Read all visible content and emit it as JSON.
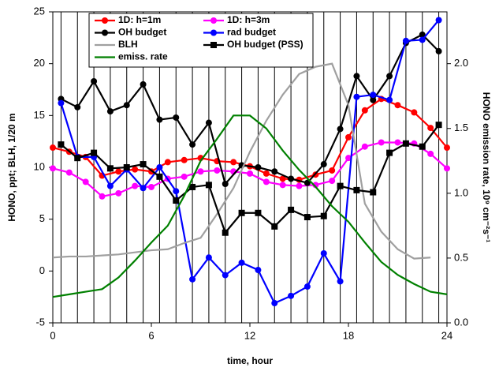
{
  "chart_data": {
    "type": "line",
    "x_label": "time, hour",
    "y_label": "HONO, ppt; BLH, 1/20 m",
    "y2_label": "HONO emission rate, 10⁹ cm⁻²s⁻¹",
    "xlim": [
      0,
      24
    ],
    "xticks": [
      0,
      6,
      12,
      18,
      24
    ],
    "ylim": [
      -5,
      25
    ],
    "yticks": [
      -5,
      0,
      5,
      10,
      15,
      20,
      25
    ],
    "y2lim": [
      0,
      2.4
    ],
    "y2ticks": [
      {
        "value": 0,
        "label": "0.0"
      },
      {
        "value": 0.5,
        "label": "0.5"
      },
      {
        "value": 1,
        "label": "1.0"
      },
      {
        "value": 1.5,
        "label": "1.5"
      },
      {
        "value": 2,
        "label": "2.0"
      }
    ],
    "legend": "top",
    "series": [
      {
        "name": "1D: h=1m",
        "color": "#ff0000",
        "marker": "circle",
        "x": [
          0,
          1,
          2,
          3,
          4,
          5,
          6,
          7,
          8,
          9,
          10,
          11,
          12,
          13,
          14,
          15,
          16,
          17,
          18,
          19,
          20,
          21,
          22,
          23,
          24
        ],
        "values": [
          11.9,
          11.5,
          11.0,
          9.2,
          9.6,
          9.8,
          9.6,
          10.5,
          10.7,
          10.9,
          10.6,
          10.5,
          10.1,
          9.4,
          8.9,
          8.8,
          9.3,
          9.7,
          12.9,
          15.5,
          16.6,
          16.0,
          15.3,
          13.8,
          11.9
        ]
      },
      {
        "name": "1D: h=3m",
        "color": "#ff00ff",
        "marker": "circle",
        "x": [
          0,
          1,
          2,
          3,
          4,
          5,
          6,
          7,
          8,
          9,
          10,
          11,
          12,
          13,
          14,
          15,
          16,
          17,
          18,
          19,
          20,
          21,
          22,
          23,
          24
        ],
        "values": [
          9.9,
          9.5,
          8.6,
          7.2,
          7.5,
          8.2,
          8.1,
          8.9,
          9.1,
          9.6,
          9.7,
          9.6,
          9.4,
          8.6,
          8.3,
          8.2,
          8.3,
          8.7,
          10.9,
          12.0,
          12.4,
          12.4,
          12.3,
          11.3,
          9.9
        ]
      },
      {
        "name": "OH budget",
        "color": "#000000",
        "marker": "circle",
        "x": [
          0.5,
          1.5,
          2.5,
          3.5,
          4.5,
          5.5,
          6.5,
          7.5,
          8.5,
          9.5,
          10.5,
          11.5,
          12.5,
          13.5,
          14.5,
          15.5,
          16.5,
          17.5,
          18.5,
          19.5,
          20.5,
          21.5,
          22.5,
          23.5
        ],
        "values": [
          16.6,
          15.8,
          18.3,
          15.4,
          16.0,
          18.0,
          14.6,
          14.8,
          12.2,
          14.3,
          8.4,
          10.2,
          10.0,
          9.6,
          8.9,
          8.5,
          10.3,
          13.7,
          18.8,
          16.5,
          18.8,
          22.0,
          22.8,
          21.2
        ]
      },
      {
        "name": "rad budget",
        "color": "#0000ff",
        "marker": "circle",
        "x": [
          0.5,
          1.5,
          2.5,
          3.5,
          4.5,
          5.5,
          6.5,
          7.5,
          8.5,
          9.5,
          10.5,
          11.5,
          12.5,
          13.5,
          14.5,
          15.5,
          16.5,
          17.5,
          18.5,
          19.5,
          20.5,
          21.5,
          22.5,
          23.5
        ],
        "values": [
          16.2,
          11.0,
          11.0,
          8.2,
          9.8,
          8.0,
          10.0,
          7.7,
          -0.8,
          1.3,
          -0.4,
          0.8,
          0.1,
          -3.1,
          -2.4,
          -1.5,
          1.7,
          -1.0,
          16.8,
          17.0,
          16.5,
          22.2,
          22.3,
          24.2
        ]
      },
      {
        "name": "BLH",
        "color": "#a0a0a0",
        "marker": "none",
        "x": [
          0,
          1,
          2,
          3,
          4,
          5,
          6,
          7,
          8,
          9,
          10,
          11,
          12,
          13,
          14,
          15,
          16,
          17,
          18,
          19,
          20,
          21,
          22,
          23
        ],
        "values": [
          1.3,
          1.4,
          1.4,
          1.5,
          1.6,
          1.8,
          2.0,
          2.1,
          2.7,
          3.2,
          5.5,
          8.0,
          11.5,
          14.5,
          17.0,
          19.0,
          19.7,
          20.0,
          16.0,
          6.5,
          3.8,
          2.1,
          1.2,
          1.3
        ]
      },
      {
        "name": "OH budget (PSS)",
        "color": "#000000",
        "marker": "square",
        "x": [
          0.5,
          1.5,
          2.5,
          3.5,
          4.5,
          5.5,
          6.5,
          7.5,
          8.5,
          9.5,
          10.5,
          11.5,
          12.5,
          13.5,
          14.5,
          15.5,
          16.5,
          17.5,
          18.5,
          19.5,
          20.5,
          21.5,
          22.5,
          23.5
        ],
        "values": [
          12.2,
          10.9,
          11.4,
          9.9,
          10.0,
          10.3,
          9.1,
          6.8,
          8.1,
          8.3,
          3.7,
          5.6,
          5.6,
          4.3,
          5.9,
          5.2,
          5.3,
          8.2,
          7.8,
          7.6,
          11.4,
          12.3,
          12.0,
          14.1
        ]
      },
      {
        "name": "emiss. rate",
        "color": "#008000",
        "marker": "none",
        "axis": "y2",
        "x": [
          0,
          1,
          2,
          3,
          4,
          5,
          6,
          7,
          8,
          9,
          10,
          11,
          12,
          13,
          14,
          15,
          16,
          17,
          18,
          19,
          20,
          21,
          22,
          23,
          24
        ],
        "values": [
          0.2,
          0.22,
          0.24,
          0.26,
          0.35,
          0.48,
          0.62,
          0.75,
          0.98,
          1.25,
          1.42,
          1.6,
          1.6,
          1.5,
          1.33,
          1.18,
          1.05,
          0.9,
          0.78,
          0.62,
          0.47,
          0.37,
          0.3,
          0.24,
          0.22
        ]
      }
    ]
  }
}
